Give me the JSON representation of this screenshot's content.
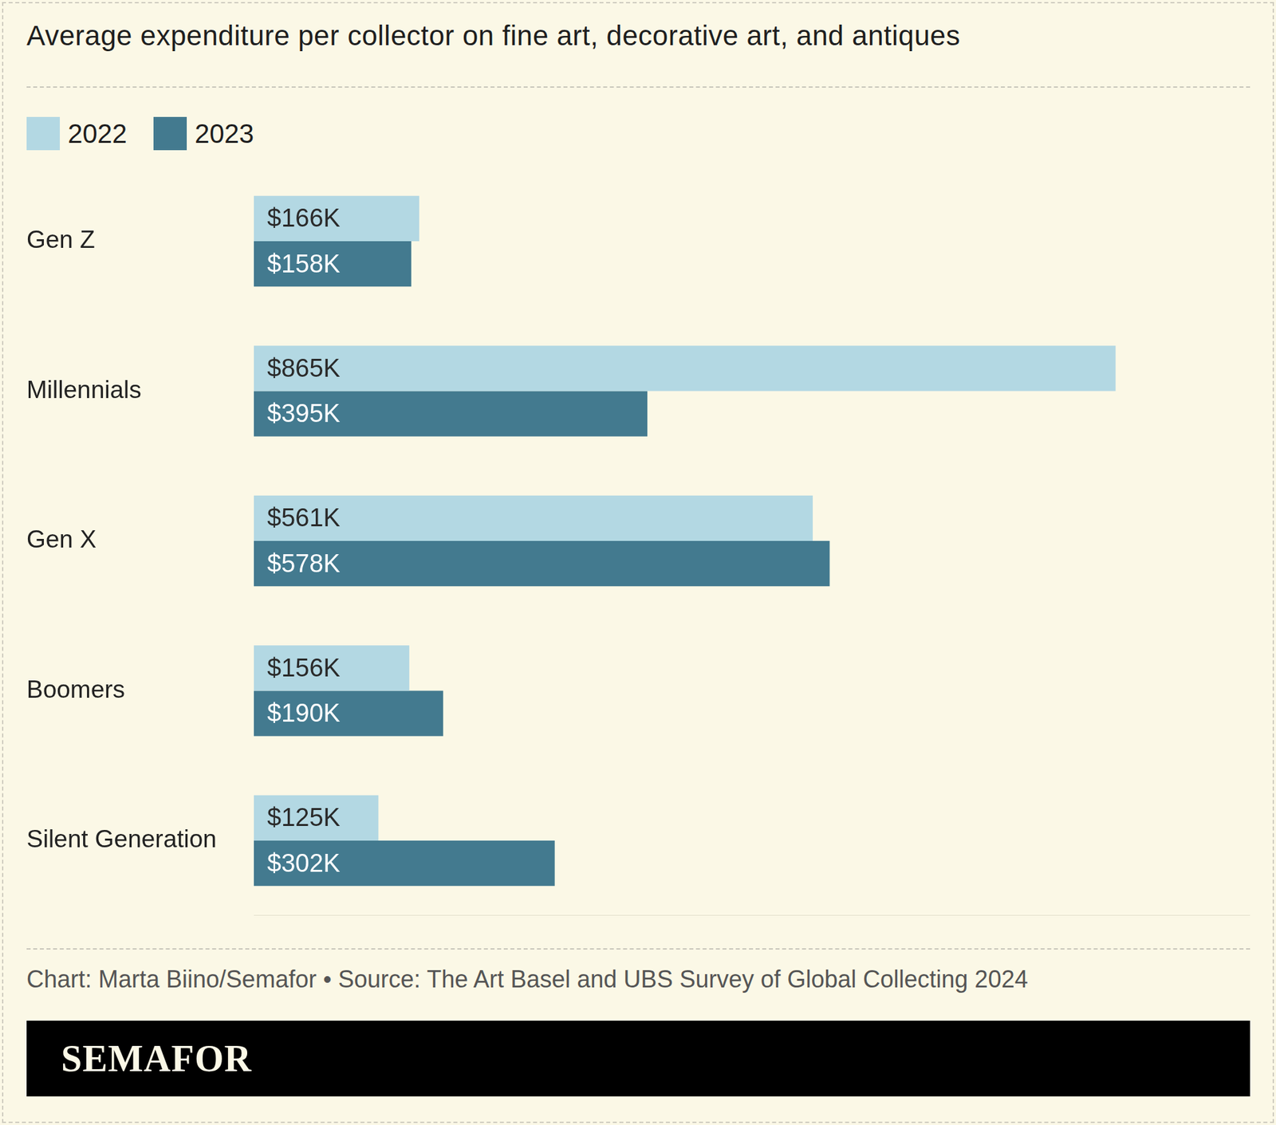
{
  "chart_data": {
    "type": "bar",
    "orientation": "horizontal",
    "title": "Average expenditure per collector on fine art, decorative art, and antiques",
    "categories": [
      "Gen Z",
      "Millennials",
      "Gen X",
      "Boomers",
      "Silent Generation"
    ],
    "series": [
      {
        "name": "2022",
        "color": "#b3d8e3",
        "values": [
          166,
          865,
          561,
          156,
          125
        ],
        "value_labels": [
          "$166K",
          "$865K",
          "$561K",
          "$156K",
          "$125K"
        ]
      },
      {
        "name": "2023",
        "color": "#437a8f",
        "values": [
          158,
          395,
          578,
          190,
          302
        ],
        "value_labels": [
          "$158K",
          "$395K",
          "$578K",
          "$190K",
          "$302K"
        ]
      }
    ],
    "xlim": [
      0,
      1000
    ],
    "grid": false,
    "tick_labels": "y",
    "data_labels": true,
    "legend": "top-left",
    "source": "Chart: Marta Biino/Semafor • Source: The Art Basel and UBS Survey of Global Collecting 2024",
    "footer": "SEMAFOR"
  }
}
